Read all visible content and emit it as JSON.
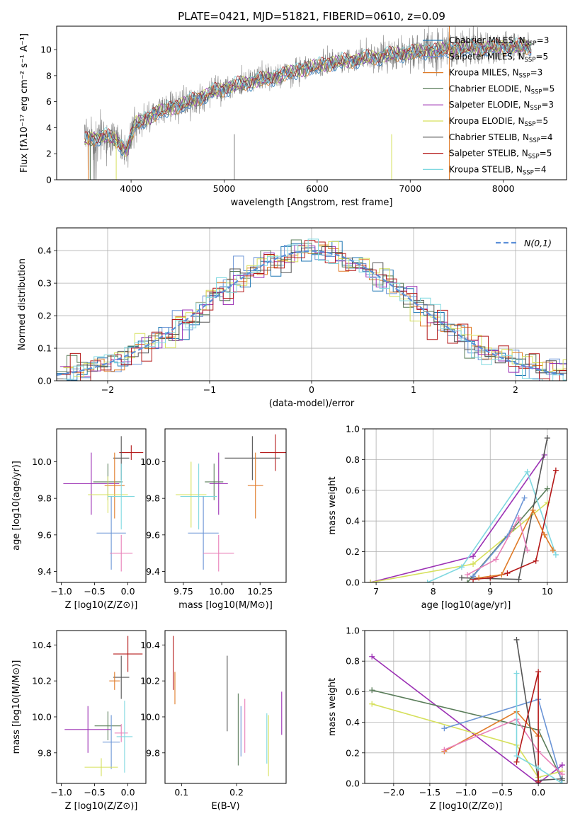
{
  "figure_title": "PLATE=0421, MJD=51821, FIBERID=0610, z=0.09",
  "colors": {
    "chabrier_miles": "#1f77b4",
    "salpeter_miles": "#6b95d6",
    "kroupa_miles": "#e07b28",
    "chabrier_elodie": "#5a7d5a",
    "salpeter_elodie": "#9b30b4",
    "kroupa_elodie": "#d6e05c",
    "chabrier_stelib": "#555555",
    "salpeter_stelib": "#b41818",
    "kroupa_stelib": "#7fd8e0",
    "pink": "#e87fb8",
    "data_grey": "#808080",
    "gauss": "#5b8fd8"
  },
  "chart_data": [
    {
      "id": "spectrum",
      "type": "line",
      "xlabel": "wavelength [Angstrom, rest frame]",
      "ylabel": "Flux [fλ10⁻¹⁷ erg cm⁻² s⁻¹ A⁻¹]",
      "xlim": [
        3200,
        8680
      ],
      "ylim": [
        0,
        11.8
      ],
      "xticks": [
        4000,
        5000,
        6000,
        7000,
        8000
      ],
      "yticks": [
        0,
        2,
        4,
        6,
        8,
        10
      ],
      "legend": "top-right",
      "legend_entries": [
        {
          "name": "Chabrier MILES, N_SSP=3",
          "base": "Chabrier MILES, N",
          "sub": "SSP",
          "tail": "=3",
          "color": "#1f77b4"
        },
        {
          "name": "Salpeter MILES, N_SSP=5",
          "base": "Salpeter MILES, N",
          "sub": "SSP",
          "tail": "=5",
          "color": "#6b95d6"
        },
        {
          "name": "Kroupa MILES, N_SSP=3",
          "base": "Kroupa MILES, N",
          "sub": "SSP",
          "tail": "=3",
          "color": "#e07b28"
        },
        {
          "name": "Chabrier ELODIE, N_SSP=5",
          "base": "Chabrier ELODIE, N",
          "sub": "SSP",
          "tail": "=5",
          "color": "#5a7d5a"
        },
        {
          "name": "Salpeter ELODIE, N_SSP=3",
          "base": "Salpeter ELODIE, N",
          "sub": "SSP",
          "tail": "=3",
          "color": "#9b30b4"
        },
        {
          "name": "Kroupa ELODIE, N_SSP=5",
          "base": "Kroupa ELODIE, N",
          "sub": "SSP",
          "tail": "=5",
          "color": "#d6e05c"
        },
        {
          "name": "Chabrier STELIB, N_SSP=4",
          "base": "Chabrier STELIB, N",
          "sub": "SSP",
          "tail": "=4",
          "color": "#555555"
        },
        {
          "name": "Salpeter STELIB, N_SSP=5",
          "base": "Salpeter STELIB, N",
          "sub": "SSP",
          "tail": "=5",
          "color": "#b41818"
        },
        {
          "name": "Kroupa STELIB, N_SSP=4",
          "base": "Kroupa STELIB, N",
          "sub": "SSP",
          "tail": "=4",
          "color": "#7fd8e0"
        }
      ],
      "continuum_knots": [
        [
          3500,
          3.0
        ],
        [
          3700,
          3.4
        ],
        [
          3850,
          3.0
        ],
        [
          3950,
          2.2
        ],
        [
          4050,
          4.3
        ],
        [
          4300,
          5.2
        ],
        [
          4600,
          5.9
        ],
        [
          4900,
          6.8
        ],
        [
          5200,
          7.4
        ],
        [
          5500,
          7.8
        ],
        [
          5800,
          8.4
        ],
        [
          6100,
          8.9
        ],
        [
          6400,
          9.2
        ],
        [
          6800,
          9.6
        ],
        [
          7200,
          9.9
        ],
        [
          7600,
          10.1
        ],
        [
          8000,
          10.2
        ],
        [
          8300,
          10.2
        ]
      ],
      "data_noise_amplitude": [
        [
          3500,
          1.6
        ],
        [
          4100,
          1.2
        ],
        [
          5000,
          0.9
        ],
        [
          6000,
          0.8
        ],
        [
          7000,
          1.1
        ],
        [
          7400,
          1.5
        ],
        [
          8300,
          0.8
        ]
      ]
    },
    {
      "id": "residuals",
      "type": "histogram",
      "xlabel": "(data-model)/error",
      "ylabel": "Normed distribution",
      "xlim": [
        -2.5,
        2.5
      ],
      "ylim": [
        0,
        0.47
      ],
      "xticks": [
        -2,
        -1,
        0,
        1,
        2
      ],
      "yticks": [
        0.0,
        0.1,
        0.2,
        0.3,
        0.4
      ],
      "grid": true,
      "legend": "top-right",
      "legend_entries": [
        {
          "name": "N(0,1)",
          "color": "#5b8fd8",
          "style": "dashed"
        }
      ],
      "bin_width": 0.1,
      "bin_start": -2.5,
      "gaussian": {
        "mean": 0,
        "sigma": 1
      }
    },
    {
      "id": "age_vs_Z",
      "type": "errorbar",
      "xlabel": "Z [log10(Z/Z⊙)]",
      "ylabel": "age [log10(age/yr)]",
      "xlim": [
        -1.07,
        0.27
      ],
      "ylim": [
        9.34,
        10.18
      ],
      "xticks": [
        -1.0,
        -0.5,
        0.0
      ],
      "yticks": [
        9.4,
        9.6,
        9.8,
        10.0
      ],
      "points": [
        {
          "x": 0.05,
          "xerr": 0.18,
          "y": 10.05,
          "yerr": 0.04,
          "color": "#b41818"
        },
        {
          "x": -0.1,
          "xerr": 0.12,
          "y": 10.02,
          "yerr": 0.12,
          "color": "#555555"
        },
        {
          "x": -0.55,
          "xerr": 0.42,
          "y": 9.88,
          "yerr": 0.17,
          "color": "#9b30b4"
        },
        {
          "x": -0.3,
          "xerr": 0.22,
          "y": 9.89,
          "yerr": 0.1,
          "color": "#5a7d5a"
        },
        {
          "x": -0.2,
          "xerr": 0.15,
          "y": 9.87,
          "yerr": 0.18,
          "color": "#e07b28"
        },
        {
          "x": -0.3,
          "xerr": 0.3,
          "y": 9.82,
          "yerr": 0.1,
          "color": "#d6e05c"
        },
        {
          "x": -0.1,
          "xerr": 0.2,
          "y": 9.81,
          "yerr": 0.18,
          "color": "#7fd8e0"
        },
        {
          "x": -0.25,
          "xerr": 0.22,
          "y": 9.61,
          "yerr": 0.2,
          "color": "#6b95d6"
        },
        {
          "x": -0.1,
          "xerr": 0.17,
          "y": 9.5,
          "yerr": 0.1,
          "color": "#e87fb8"
        }
      ]
    },
    {
      "id": "age_vs_mass",
      "type": "errorbar",
      "xlabel": "mass [log10(M/M⊙)]",
      "ylabel": "",
      "xlim": [
        9.63,
        10.42
      ],
      "ylim": [
        9.34,
        10.18
      ],
      "xticks": [
        9.75,
        10.0,
        10.25
      ],
      "tick_labels": [
        "9.75",
        "10.00",
        "10.25"
      ],
      "yticks": [
        9.4,
        9.6,
        9.8,
        10.0
      ],
      "points": [
        {
          "x": 10.35,
          "xerr": 0.1,
          "y": 10.05,
          "yerr": 0.1,
          "color": "#b41818"
        },
        {
          "x": 10.2,
          "xerr": 0.18,
          "y": 10.02,
          "yerr": 0.12,
          "color": "#555555"
        },
        {
          "x": 9.98,
          "xerr": 0.06,
          "y": 9.88,
          "yerr": 0.17,
          "color": "#9b30b4"
        },
        {
          "x": 9.95,
          "xerr": 0.06,
          "y": 9.89,
          "yerr": 0.1,
          "color": "#5a7d5a"
        },
        {
          "x": 10.22,
          "xerr": 0.05,
          "y": 9.87,
          "yerr": 0.18,
          "color": "#e07b28"
        },
        {
          "x": 9.8,
          "xerr": 0.1,
          "y": 9.82,
          "yerr": 0.18,
          "color": "#d6e05c"
        },
        {
          "x": 9.85,
          "xerr": 0.12,
          "y": 9.81,
          "yerr": 0.18,
          "color": "#7fd8e0"
        },
        {
          "x": 9.88,
          "xerr": 0.1,
          "y": 9.61,
          "yerr": 0.2,
          "color": "#6b95d6"
        },
        {
          "x": 9.98,
          "xerr": 0.1,
          "y": 9.5,
          "yerr": 0.1,
          "color": "#e87fb8"
        }
      ]
    },
    {
      "id": "weight_vs_age",
      "type": "line",
      "xlabel": "age [log10(age/yr)]",
      "ylabel": "mass weight",
      "xlim": [
        6.8,
        10.35
      ],
      "ylim": [
        0,
        1
      ],
      "xticks": [
        7,
        8,
        9,
        10
      ],
      "yticks": [
        0.0,
        0.2,
        0.4,
        0.6,
        0.8,
        1.0
      ],
      "grid": true,
      "series": [
        {
          "color": "#9b30b4",
          "x": [
            6.9,
            8.7,
            9.95
          ],
          "y": [
            0.0,
            0.17,
            0.83
          ]
        },
        {
          "color": "#d6e05c",
          "x": [
            6.9,
            8.7,
            10.0
          ],
          "y": [
            0.0,
            0.12,
            0.52
          ]
        },
        {
          "color": "#5a7d5a",
          "x": [
            8.6,
            9.4,
            10.0
          ],
          "y": [
            0.0,
            0.35,
            0.61
          ]
        },
        {
          "color": "#7fd8e0",
          "x": [
            7.9,
            8.5,
            9.65,
            10.15
          ],
          "y": [
            0.0,
            0.1,
            0.72,
            0.18
          ]
        },
        {
          "color": "#555555",
          "x": [
            8.5,
            9.5,
            10.0
          ],
          "y": [
            0.03,
            0.02,
            0.94
          ]
        },
        {
          "color": "#b41818",
          "x": [
            8.7,
            9.0,
            9.3,
            9.8,
            10.15
          ],
          "y": [
            0.02,
            0.03,
            0.06,
            0.14,
            0.73
          ]
        },
        {
          "color": "#e07b28",
          "x": [
            8.8,
            9.2,
            9.75,
            9.95,
            10.1
          ],
          "y": [
            0.03,
            0.05,
            0.47,
            0.31,
            0.21
          ]
        },
        {
          "color": "#6b95d6",
          "x": [
            8.7,
            9.3,
            9.6
          ],
          "y": [
            0.04,
            0.3,
            0.55
          ]
        },
        {
          "color": "#e87fb8",
          "x": [
            8.6,
            9.1,
            9.5,
            9.65
          ],
          "y": [
            0.05,
            0.15,
            0.42,
            0.21
          ]
        }
      ]
    },
    {
      "id": "mass_vs_Z",
      "type": "errorbar",
      "xlabel": "Z [log10(Z/Z⊙)]",
      "ylabel": "mass [log10(M/M⊙)]",
      "xlim": [
        -1.07,
        0.27
      ],
      "ylim": [
        9.63,
        10.48
      ],
      "xticks": [
        -1.0,
        -0.5,
        0.0
      ],
      "yticks": [
        9.8,
        10.0,
        10.2,
        10.4
      ],
      "points": [
        {
          "x": 0.0,
          "xerr": 0.22,
          "y": 10.35,
          "yerr": 0.1,
          "color": "#b41818"
        },
        {
          "x": -0.1,
          "xerr": 0.12,
          "y": 10.22,
          "yerr": 0.12,
          "color": "#555555"
        },
        {
          "x": -0.2,
          "xerr": 0.08,
          "y": 10.2,
          "yerr": 0.05,
          "color": "#e07b28"
        },
        {
          "x": -0.3,
          "xerr": 0.2,
          "y": 9.95,
          "yerr": 0.08,
          "color": "#5a7d5a"
        },
        {
          "x": -0.6,
          "xerr": 0.35,
          "y": 9.93,
          "yerr": 0.13,
          "color": "#9b30b4"
        },
        {
          "x": -0.1,
          "xerr": 0.1,
          "y": 9.91,
          "yerr": 0.05,
          "color": "#e87fb8"
        },
        {
          "x": -0.05,
          "xerr": 0.12,
          "y": 9.89,
          "yerr": 0.2,
          "color": "#7fd8e0"
        },
        {
          "x": -0.25,
          "xerr": 0.13,
          "y": 9.86,
          "yerr": 0.15,
          "color": "#6b95d6"
        },
        {
          "x": -0.4,
          "xerr": 0.25,
          "y": 9.72,
          "yerr": 0.05,
          "color": "#d6e05c"
        }
      ]
    },
    {
      "id": "mass_vs_ebv",
      "type": "errorbar",
      "xlabel": "E(B-V)",
      "ylabel": "",
      "xlim": [
        0.07,
        0.29
      ],
      "ylim": [
        9.63,
        10.48
      ],
      "xticks": [
        0.1,
        0.2
      ],
      "yticks": [
        9.8,
        10.0,
        10.2,
        10.4
      ],
      "points": [
        {
          "x": 0.085,
          "y": 10.3,
          "yerr": 0.15,
          "color": "#b41818"
        },
        {
          "x": 0.088,
          "y": 10.16,
          "yerr": 0.09,
          "color": "#e07b28"
        },
        {
          "x": 0.183,
          "y": 10.13,
          "yerr": 0.21,
          "color": "#555555"
        },
        {
          "x": 0.203,
          "y": 9.93,
          "yerr": 0.2,
          "color": "#5a7d5a"
        },
        {
          "x": 0.208,
          "y": 9.92,
          "yerr": 0.14,
          "color": "#6b95d6"
        },
        {
          "x": 0.215,
          "y": 9.95,
          "yerr": 0.15,
          "color": "#e87fb8"
        },
        {
          "x": 0.255,
          "y": 9.88,
          "yerr": 0.14,
          "color": "#7fd8e0"
        },
        {
          "x": 0.258,
          "y": 9.84,
          "yerr": 0.17,
          "color": "#d6e05c"
        },
        {
          "x": 0.282,
          "y": 10.02,
          "yerr": 0.12,
          "color": "#9b30b4"
        }
      ]
    },
    {
      "id": "weight_vs_Z",
      "type": "line",
      "xlabel": "Z [log10(Z/Z⊙)]",
      "ylabel": "mass weight",
      "xlim": [
        -2.4,
        0.4
      ],
      "ylim": [
        0,
        1
      ],
      "xticks": [
        -2.0,
        -1.5,
        -1.0,
        -0.5,
        0.0
      ],
      "yticks": [
        0.0,
        0.2,
        0.4,
        0.6,
        0.8,
        1.0
      ],
      "grid": true,
      "series": [
        {
          "color": "#9b30b4",
          "x": [
            -2.3,
            0.0,
            0.33
          ],
          "y": [
            0.83,
            0.0,
            0.12
          ]
        },
        {
          "color": "#5a7d5a",
          "x": [
            -2.3,
            0.0,
            0.33
          ],
          "y": [
            0.61,
            0.35,
            0.02
          ]
        },
        {
          "color": "#d6e05c",
          "x": [
            -2.3,
            -0.3,
            0.0,
            0.33
          ],
          "y": [
            0.52,
            0.25,
            0.04,
            0.08
          ]
        },
        {
          "color": "#6b95d6",
          "x": [
            -1.3,
            0.0,
            0.33
          ],
          "y": [
            0.36,
            0.55,
            0.0
          ]
        },
        {
          "color": "#e07b28",
          "x": [
            -1.3,
            -0.3,
            0.0
          ],
          "y": [
            0.21,
            0.47,
            0.31
          ]
        },
        {
          "color": "#e87fb8",
          "x": [
            -1.3,
            -0.3,
            0.0,
            0.33
          ],
          "y": [
            0.22,
            0.42,
            0.21,
            0.06
          ]
        },
        {
          "color": "#555555",
          "x": [
            -0.3,
            0.0,
            0.33
          ],
          "y": [
            0.94,
            0.02,
            0.03
          ]
        },
        {
          "color": "#b41818",
          "x": [
            -0.3,
            0.0,
            0.0
          ],
          "y": [
            0.14,
            0.73,
            0.01
          ]
        },
        {
          "color": "#7fd8e0",
          "x": [
            -0.3,
            -0.3,
            0.0,
            0.33
          ],
          "y": [
            0.72,
            0.18,
            0.1,
            0.0
          ]
        }
      ]
    }
  ]
}
